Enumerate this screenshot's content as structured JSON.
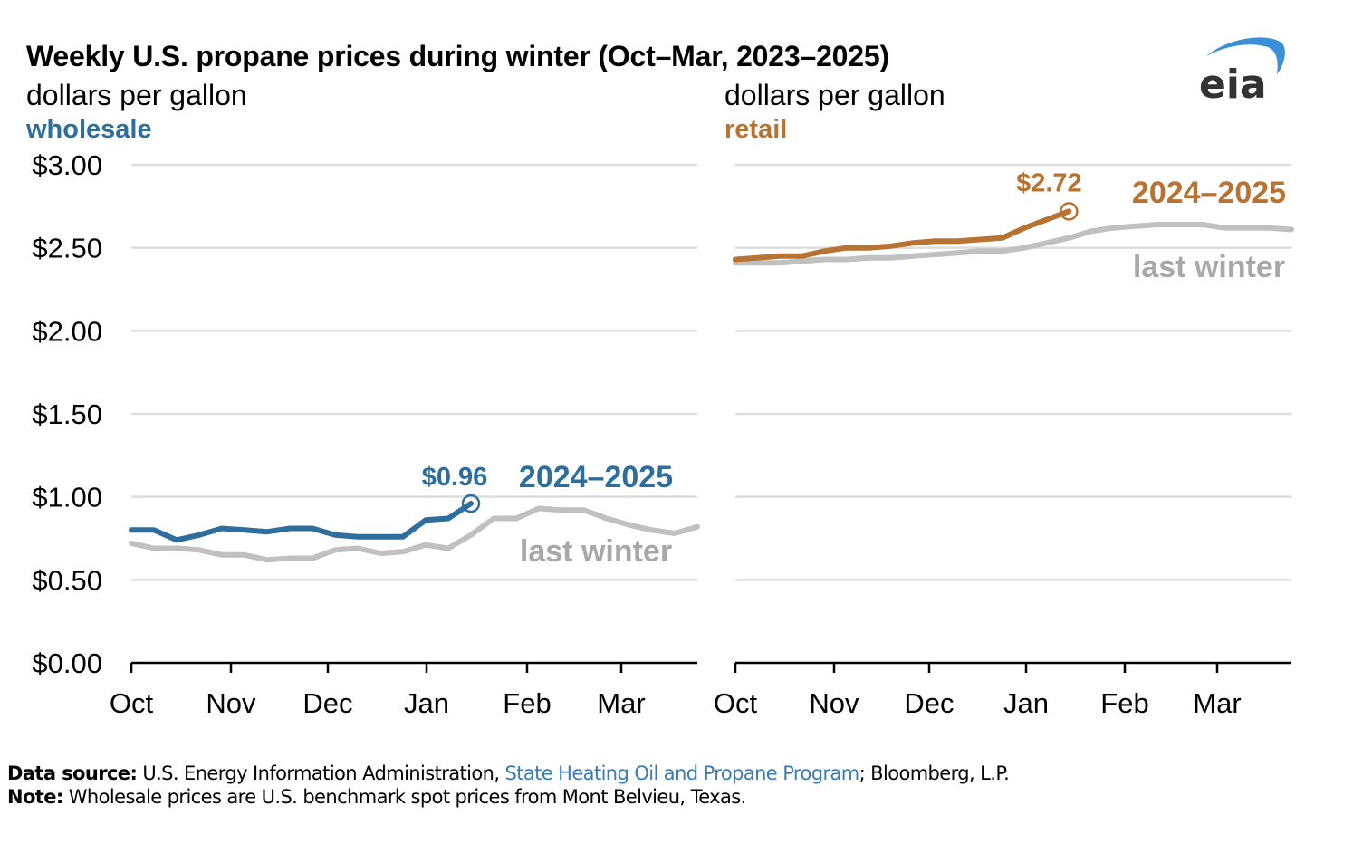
{
  "header": {
    "title": "Weekly U.S. propane prices during winter (Oct–Mar, 2023–2025)",
    "logo_text": "eia"
  },
  "colors": {
    "wholesale": "#2e6e9e",
    "retail": "#b87333",
    "last_winter": "#c0c0c0",
    "last_winter_label": "#a8a8a8",
    "grid": "#dddddd",
    "logo_arc": "#3a8fd6",
    "logo_text": "#333333",
    "link": "#3a7ab5"
  },
  "chart_data": [
    {
      "type": "line",
      "panel": "wholesale",
      "unit_label": "dollars per gallon",
      "panel_label": "wholesale",
      "ylim": [
        0,
        3
      ],
      "yticks": [
        0,
        0.5,
        1.0,
        1.5,
        2.0,
        2.5,
        3.0
      ],
      "ytick_labels": [
        "$0.00",
        "$0.50",
        "$1.00",
        "$1.50",
        "$2.00",
        "$2.50",
        "$3.00"
      ],
      "xtick_labels": [
        "Oct",
        "Nov",
        "Dec",
        "Jan",
        "Feb",
        "Mar"
      ],
      "weeks_total": 26,
      "grid": true,
      "series": [
        {
          "name": "last winter",
          "label": "last winter",
          "values": [
            0.72,
            0.69,
            0.69,
            0.68,
            0.65,
            0.65,
            0.62,
            0.63,
            0.63,
            0.68,
            0.69,
            0.66,
            0.67,
            0.71,
            0.69,
            0.77,
            0.87,
            0.87,
            0.93,
            0.92,
            0.92,
            0.87,
            0.83,
            0.8,
            0.78,
            0.82
          ]
        },
        {
          "name": "2024–2025",
          "label": "2024–2025",
          "values": [
            0.8,
            0.8,
            0.74,
            0.77,
            0.81,
            0.8,
            0.79,
            0.81,
            0.81,
            0.77,
            0.76,
            0.76,
            0.76,
            0.86,
            0.87,
            0.96
          ]
        }
      ],
      "annotation": {
        "text": "$0.96",
        "value": 0.96
      }
    },
    {
      "type": "line",
      "panel": "retail",
      "unit_label": "dollars per gallon",
      "panel_label": "retail",
      "ylim": [
        0,
        3
      ],
      "yticks": [
        0,
        0.5,
        1.0,
        1.5,
        2.0,
        2.5,
        3.0
      ],
      "xtick_labels": [
        "Oct",
        "Nov",
        "Dec",
        "Jan",
        "Feb",
        "Mar"
      ],
      "weeks_total": 26,
      "grid": true,
      "series": [
        {
          "name": "last winter",
          "label": "last winter",
          "values": [
            2.41,
            2.41,
            2.41,
            2.42,
            2.43,
            2.43,
            2.44,
            2.44,
            2.45,
            2.46,
            2.47,
            2.48,
            2.48,
            2.5,
            2.53,
            2.56,
            2.6,
            2.62,
            2.63,
            2.64,
            2.64,
            2.64,
            2.62,
            2.62,
            2.62,
            2.61
          ]
        },
        {
          "name": "2024–2025",
          "label": "2024–2025",
          "values": [
            2.43,
            2.44,
            2.45,
            2.45,
            2.48,
            2.5,
            2.5,
            2.51,
            2.53,
            2.54,
            2.54,
            2.55,
            2.56,
            2.62,
            2.67,
            2.72
          ]
        }
      ],
      "annotation": {
        "text": "$2.72",
        "value": 2.72
      }
    }
  ],
  "footer": {
    "source_label": "Data source:",
    "source_text_1": " U.S. Energy Information Administration, ",
    "source_link": "State Heating Oil and Propane Program",
    "source_text_2": "; Bloomberg, L.P.",
    "note_label": "Note:",
    "note_text": " Wholesale prices are U.S. benchmark spot prices from Mont Belvieu, Texas."
  }
}
